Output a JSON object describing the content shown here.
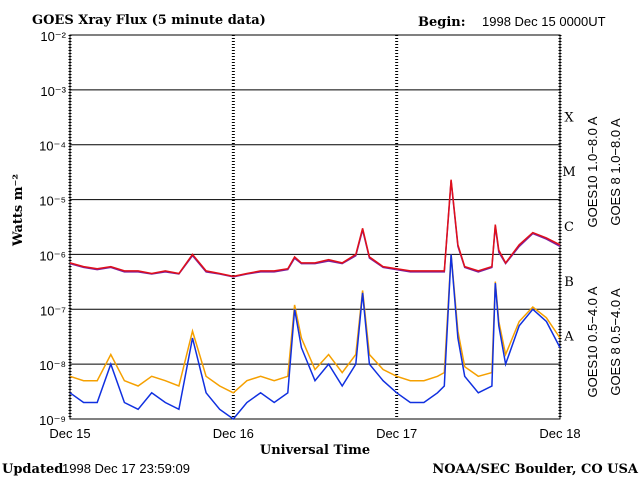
{
  "chart_data": {
    "type": "line",
    "title": "GOES Xray Flux (5 minute data)",
    "begin_label": "Begin:",
    "begin": "1998 Dec 15 0000UT",
    "y_label": "Watts m⁻²",
    "x_label": "Universal Time",
    "updated_label": "Updated",
    "updated": "1998 Dec 17 23:59:09",
    "credit": "NOAA/SEC Boulder, CO USA",
    "log_y": true,
    "grid": true,
    "classes": [
      "A",
      "B",
      "C",
      "M",
      "X"
    ],
    "xlim": [
      0,
      72
    ],
    "xticks": [
      {
        "value": 0,
        "label": "Dec 15"
      },
      {
        "value": 24,
        "label": "Dec 16"
      },
      {
        "value": 48,
        "label": "Dec 17"
      },
      {
        "value": 72,
        "label": "Dec 18"
      }
    ],
    "ylim": [
      1e-09,
      0.01
    ],
    "yticks": [
      {
        "value": 1e-09,
        "label": "10⁻⁹"
      },
      {
        "value": 1e-08,
        "label": "10⁻⁸"
      },
      {
        "value": 1e-07,
        "label": "10⁻⁷"
      },
      {
        "value": 1e-06,
        "label": "10⁻⁶"
      },
      {
        "value": 1e-05,
        "label": "10⁻⁵"
      },
      {
        "value": 0.0001,
        "label": "10⁻⁴"
      },
      {
        "value": 0.001,
        "label": "10⁻³"
      },
      {
        "value": 0.01,
        "label": "10⁻²"
      }
    ],
    "x": [
      0,
      2,
      4,
      6,
      8,
      10,
      12,
      14,
      16,
      18,
      20,
      22,
      24,
      26,
      28,
      30,
      32,
      33,
      34,
      36,
      38,
      40,
      42,
      43,
      44,
      46,
      48,
      50,
      52,
      54,
      55,
      56,
      57,
      58,
      60,
      62,
      62.5,
      63,
      64,
      66,
      68,
      70,
      72
    ],
    "series": [
      {
        "name": "GOES10 1.0−8.0 A",
        "color": "#7a1fa0",
        "values": [
          6.8e-07,
          5.8e-07,
          5.3e-07,
          5.8e-07,
          4.8e-07,
          4.8e-07,
          4.4e-07,
          4.8e-07,
          4.4e-07,
          9.5e-07,
          4.8e-07,
          4.4e-07,
          3.9e-07,
          4.4e-07,
          4.8e-07,
          4.8e-07,
          5.3e-07,
          8.5e-07,
          6.8e-07,
          6.8e-07,
          7.6e-07,
          6.8e-07,
          9.5e-07,
          2.8e-06,
          8.6e-07,
          5.8e-07,
          5.3e-07,
          4.8e-07,
          4.8e-07,
          4.8e-07,
          4.8e-07,
          2.2e-05,
          1.4e-06,
          5.8e-07,
          4.8e-07,
          5.8e-07,
          3.3e-06,
          1.1e-06,
          6.8e-07,
          1.4e-06,
          2.4e-06,
          1.9e-06,
          1.4e-06
        ]
      },
      {
        "name": "GOES 8 1.0−8.0 A",
        "color": "#e0101a",
        "values": [
          7e-07,
          6e-07,
          5.5e-07,
          6e-07,
          5e-07,
          5e-07,
          4.5e-07,
          5e-07,
          4.5e-07,
          1e-06,
          5e-07,
          4.5e-07,
          4e-07,
          4.5e-07,
          5e-07,
          5e-07,
          5.5e-07,
          9e-07,
          7e-07,
          7e-07,
          8e-07,
          7e-07,
          1e-06,
          3e-06,
          9e-07,
          6e-07,
          5.5e-07,
          5e-07,
          5e-07,
          5e-07,
          5e-07,
          2.3e-05,
          1.5e-06,
          6e-07,
          5e-07,
          6e-07,
          3.5e-06,
          1.2e-06,
          7e-07,
          1.5e-06,
          2.5e-06,
          2e-06,
          1.5e-06
        ]
      },
      {
        "name": "GOES10 0.5−4.0 A",
        "color": "#f5a000",
        "values": [
          6e-09,
          5e-09,
          5e-09,
          1.5e-08,
          5e-09,
          4e-09,
          6e-09,
          5e-09,
          4e-09,
          4e-08,
          6e-09,
          4e-09,
          3e-09,
          5e-09,
          6e-09,
          5e-09,
          6e-09,
          1.2e-07,
          3e-08,
          8e-09,
          1.5e-08,
          7e-09,
          1.5e-08,
          2.2e-07,
          1.5e-08,
          8e-09,
          6e-09,
          5e-09,
          5e-09,
          6e-09,
          7e-09,
          1e-06,
          4e-08,
          9e-09,
          6e-09,
          7e-09,
          3.2e-07,
          6e-08,
          1.5e-08,
          6e-08,
          1.1e-07,
          7e-08,
          3e-08
        ]
      },
      {
        "name": "GOES 8 0.5−4.0 A",
        "color": "#1030e0",
        "values": [
          3e-09,
          2e-09,
          2e-09,
          1e-08,
          2e-09,
          1.5e-09,
          3e-09,
          2e-09,
          1.5e-09,
          3e-08,
          3e-09,
          1.5e-09,
          1e-09,
          2e-09,
          3e-09,
          2e-09,
          3e-09,
          1e-07,
          2e-08,
          5e-09,
          1e-08,
          4e-09,
          1e-08,
          2e-07,
          1e-08,
          5e-09,
          3e-09,
          2e-09,
          2e-09,
          3e-09,
          4e-09,
          1e-06,
          3e-08,
          6e-09,
          3e-09,
          4e-09,
          3e-07,
          5e-08,
          1e-08,
          5e-08,
          1e-07,
          6e-08,
          2e-08
        ]
      }
    ]
  }
}
